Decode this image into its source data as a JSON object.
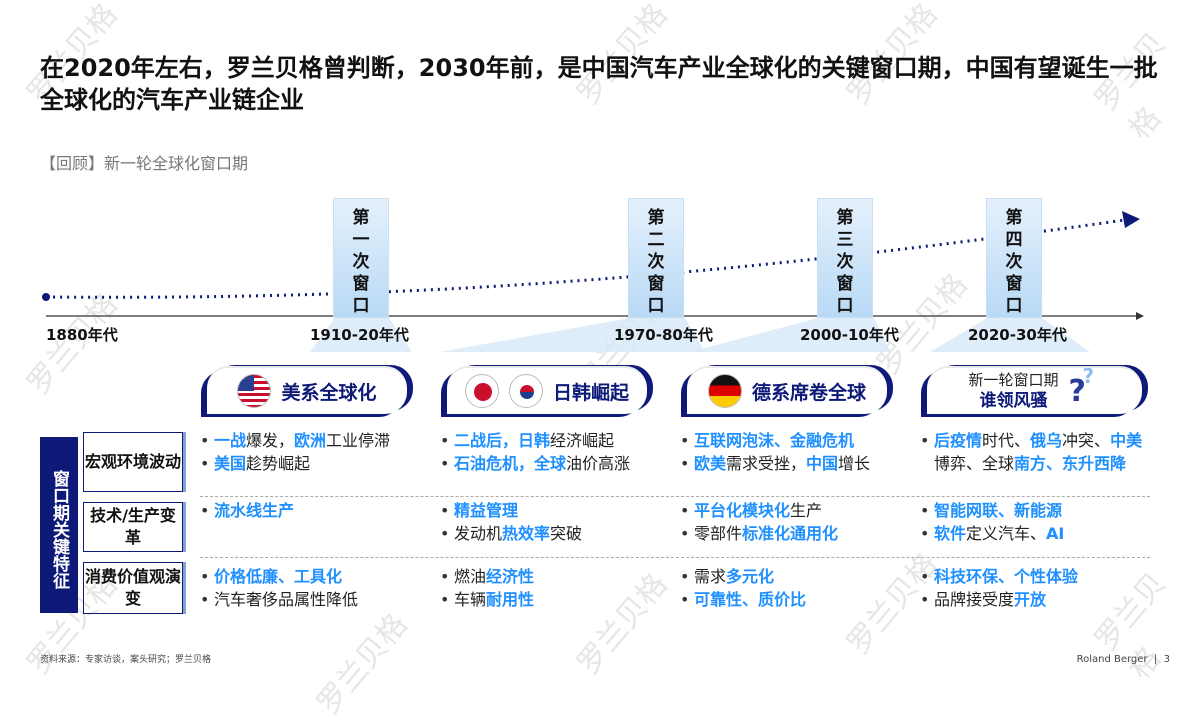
{
  "title": "在2020年左右，罗兰贝格曾判断，2030年前，是中国汽车产业全球化的关键窗口期，中国有望诞生一批全球化的汽车产业链企业",
  "subtitle": "【回顾】新一轮全球化窗口期",
  "watermark": "罗兰贝格",
  "eras": [
    "1880年代",
    "1910-20年代",
    "1970-80年代",
    "2000-10年代",
    "2020-30年代"
  ],
  "windows": [
    "第一次窗口",
    "第二次窗口",
    "第三次窗口",
    "第四次窗口"
  ],
  "cards": [
    {
      "label": "美系全球化"
    },
    {
      "label": "日韩崛起"
    },
    {
      "label": "德系席卷全球"
    },
    {
      "label_top": "新一轮窗口期",
      "label": "谁领风骚"
    }
  ],
  "side_label": "窗口期关键特征",
  "rows": [
    {
      "header": "宏观环境波动",
      "cols": [
        [
          [
            [
              "一战",
              1
            ],
            [
              "爆发，",
              0
            ],
            [
              "欧洲",
              1
            ],
            [
              "工业停滞",
              0
            ]
          ],
          [
            [
              "美国",
              1
            ],
            [
              "趁势崛起",
              0
            ]
          ]
        ],
        [
          [
            [
              "二战后，",
              1
            ],
            [
              "日韩",
              1
            ],
            [
              "经济崛起",
              0
            ]
          ],
          [
            [
              "石油危机，全球",
              1
            ],
            [
              "油价高涨",
              0
            ]
          ]
        ],
        [
          [
            [
              "互联网泡沫、金融危机",
              1
            ]
          ],
          [
            [
              "欧美",
              1
            ],
            [
              "需求受挫，",
              0
            ],
            [
              "中国",
              1
            ],
            [
              "增长",
              0
            ]
          ]
        ],
        [
          [
            [
              "后疫情",
              1
            ],
            [
              "时代、",
              0
            ],
            [
              "俄乌",
              1
            ],
            [
              "冲突、",
              0
            ],
            [
              "中美",
              1
            ],
            [
              "博弈、全球",
              0
            ],
            [
              "南方、东升西降",
              1
            ]
          ]
        ]
      ]
    },
    {
      "header": "技术/生产变革",
      "cols": [
        [
          [
            [
              "流水线生产",
              1
            ]
          ]
        ],
        [
          [
            [
              "精益管理",
              1
            ]
          ],
          [
            [
              "发动机",
              0
            ],
            [
              "热效率",
              1
            ],
            [
              "突破",
              0
            ]
          ]
        ],
        [
          [
            [
              "平台化模块化",
              1
            ],
            [
              "生产",
              0
            ]
          ],
          [
            [
              "零部件",
              0
            ],
            [
              "标准化通用化",
              1
            ]
          ]
        ],
        [
          [
            [
              "智能网联、新能源",
              1
            ]
          ],
          [
            [
              "软件",
              1
            ],
            [
              "定义汽车、",
              0
            ],
            [
              "AI",
              1
            ]
          ]
        ]
      ]
    },
    {
      "header": "消费价值观演变",
      "cols": [
        [
          [
            [
              "价格低廉、工具化",
              1
            ]
          ],
          [
            [
              "汽车奢侈品属性降低",
              0
            ]
          ]
        ],
        [
          [
            [
              "燃油",
              0
            ],
            [
              "经济性",
              1
            ]
          ],
          [
            [
              "车辆",
              0
            ],
            [
              "耐用性",
              1
            ]
          ]
        ],
        [
          [
            [
              "需求",
              0
            ],
            [
              "多元化",
              1
            ]
          ],
          [
            [
              "可靠性、质价比",
              1
            ]
          ]
        ],
        [
          [
            [
              "科技环保、个性体验",
              1
            ]
          ],
          [
            [
              "品牌接受度",
              0
            ],
            [
              "开放",
              1
            ]
          ]
        ]
      ]
    }
  ],
  "footer": {
    "source": "资料来源：专家访谈，案头研究；罗兰贝格",
    "brand": "Roland Berger",
    "page": "3"
  },
  "colors": {
    "navy": "#0d1a78",
    "highlight": "#1e90ff"
  }
}
